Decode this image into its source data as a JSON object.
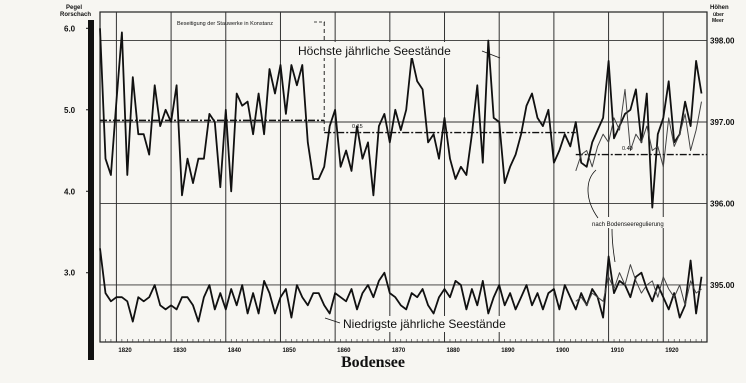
{
  "caption": "Bodensee",
  "chart_data": {
    "type": "line",
    "title": "",
    "annotation_title": "Beseitigung der Stauwerke in Konstanz",
    "left_axis_label_line1": "Pegel",
    "left_axis_label_line2": "Rorschach",
    "right_axis_label_line1": "Höhen",
    "right_axis_label_line2": "über",
    "right_axis_label_line3": "Meer",
    "left_ticks": [
      "6.0",
      "5.0",
      "4.0",
      "3.0"
    ],
    "left_tick_values": [
      6.0,
      5.0,
      4.0,
      3.0
    ],
    "right_ticks": [
      "398.00",
      "397.00",
      "396.00",
      "395.00"
    ],
    "right_tick_values": [
      5.85,
      4.85,
      3.85,
      2.85
    ],
    "x_ticks": [
      "1820",
      "1830",
      "1840",
      "1850",
      "1860",
      "1870",
      "1880",
      "1890",
      "1900",
      "1910",
      "1920"
    ],
    "x_tick_values": [
      1820,
      1830,
      1840,
      1850,
      1860,
      1870,
      1880,
      1890,
      1900,
      1910,
      1920
    ],
    "xlim": [
      1817,
      1928
    ],
    "ylim": [
      2.15,
      6.2
    ],
    "grid": true,
    "annotations": {
      "max_label": "Höchste jährliche Seestände",
      "min_label": "Niedrigste jährliche Seestände",
      "regulation_label": "nach Bodenseeregulierung",
      "mean_diff_1": "0.15",
      "mean_diff_2": "0.40"
    },
    "series": [
      {
        "name": "Höchste jährliche Seestände",
        "x": [
          1817,
          1818,
          1819,
          1820,
          1821,
          1822,
          1823,
          1824,
          1825,
          1826,
          1827,
          1828,
          1829,
          1830,
          1831,
          1832,
          1833,
          1834,
          1835,
          1836,
          1837,
          1838,
          1839,
          1840,
          1841,
          1842,
          1843,
          1844,
          1845,
          1846,
          1847,
          1848,
          1849,
          1850,
          1851,
          1852,
          1853,
          1854,
          1855,
          1856,
          1857,
          1858,
          1859,
          1860,
          1861,
          1862,
          1863,
          1864,
          1865,
          1866,
          1867,
          1868,
          1869,
          1870,
          1871,
          1872,
          1873,
          1874,
          1875,
          1876,
          1877,
          1878,
          1879,
          1880,
          1881,
          1882,
          1883,
          1884,
          1885,
          1886,
          1887,
          1888,
          1889,
          1890,
          1891,
          1892,
          1893,
          1894,
          1895,
          1896,
          1897,
          1898,
          1899,
          1900,
          1901,
          1902,
          1903,
          1904,
          1905,
          1906,
          1907,
          1908,
          1909,
          1910,
          1911,
          1912,
          1913,
          1914,
          1915,
          1916,
          1917,
          1918,
          1919,
          1920,
          1921,
          1922,
          1923,
          1924,
          1925,
          1926,
          1927
        ],
        "y": [
          6.0,
          4.4,
          4.2,
          5.1,
          5.95,
          4.2,
          5.4,
          4.7,
          4.7,
          4.45,
          5.3,
          4.8,
          5.0,
          4.85,
          5.3,
          3.95,
          4.4,
          4.1,
          4.4,
          4.4,
          4.95,
          4.85,
          4.05,
          5.0,
          4.0,
          5.2,
          5.05,
          5.1,
          4.7,
          5.2,
          4.7,
          5.5,
          5.2,
          5.55,
          4.95,
          5.55,
          5.3,
          5.55,
          4.6,
          4.15,
          4.15,
          4.3,
          4.8,
          5.0,
          4.3,
          4.5,
          4.25,
          4.8,
          4.4,
          4.6,
          3.95,
          4.8,
          4.95,
          4.6,
          5.0,
          4.75,
          5.0,
          5.65,
          5.35,
          5.25,
          4.6,
          4.7,
          4.4,
          4.9,
          4.4,
          4.15,
          4.3,
          4.2,
          4.7,
          5.3,
          4.35,
          5.85,
          4.9,
          4.85,
          4.1,
          4.3,
          4.45,
          4.7,
          5.05,
          5.2,
          4.9,
          4.8,
          5.0,
          4.35,
          4.5,
          4.7,
          4.55,
          4.85,
          4.35,
          4.3,
          4.6,
          4.75,
          4.9,
          5.6,
          4.65,
          4.8,
          4.95,
          5.0,
          5.25,
          4.6,
          5.2,
          3.8,
          4.7,
          4.9,
          5.35,
          4.6,
          4.7,
          5.1,
          4.8,
          5.6,
          5.2
        ],
        "color": "#111111",
        "style": "solid"
      },
      {
        "name": "Höchste jährliche Seestände (nach Bodenseeregulierung)",
        "x": [
          1904,
          1905,
          1906,
          1907,
          1908,
          1909,
          1910,
          1911,
          1912,
          1913,
          1914,
          1915,
          1916,
          1917,
          1918,
          1919,
          1920,
          1921,
          1922,
          1923,
          1924,
          1925,
          1926,
          1927
        ],
        "y": [
          4.25,
          4.45,
          4.5,
          4.3,
          4.55,
          4.7,
          4.6,
          4.9,
          4.75,
          5.25,
          4.5,
          4.7,
          4.6,
          4.8,
          4.5,
          4.55,
          4.3,
          4.9,
          4.55,
          4.7,
          4.95,
          4.5,
          4.75,
          5.1
        ],
        "color": "#444444",
        "style": "thin"
      },
      {
        "name": "Niedrigste jährliche Seestände",
        "x": [
          1817,
          1818,
          1819,
          1820,
          1821,
          1822,
          1823,
          1824,
          1825,
          1826,
          1827,
          1828,
          1829,
          1830,
          1831,
          1832,
          1833,
          1834,
          1835,
          1836,
          1837,
          1838,
          1839,
          1840,
          1841,
          1842,
          1843,
          1844,
          1845,
          1846,
          1847,
          1848,
          1849,
          1850,
          1851,
          1852,
          1853,
          1854,
          1855,
          1856,
          1857,
          1858,
          1859,
          1860,
          1861,
          1862,
          1863,
          1864,
          1865,
          1866,
          1867,
          1868,
          1869,
          1870,
          1871,
          1872,
          1873,
          1874,
          1875,
          1876,
          1877,
          1878,
          1879,
          1880,
          1881,
          1882,
          1883,
          1884,
          1885,
          1886,
          1887,
          1888,
          1889,
          1890,
          1891,
          1892,
          1893,
          1894,
          1895,
          1896,
          1897,
          1898,
          1899,
          1900,
          1901,
          1902,
          1903,
          1904,
          1905,
          1906,
          1907,
          1908,
          1909,
          1910,
          1911,
          1912,
          1913,
          1914,
          1915,
          1916,
          1917,
          1918,
          1919,
          1920,
          1921,
          1922,
          1923,
          1924,
          1925,
          1926,
          1927
        ],
        "y": [
          3.3,
          2.75,
          2.65,
          2.7,
          2.7,
          2.65,
          2.4,
          2.7,
          2.65,
          2.7,
          2.85,
          2.6,
          2.55,
          2.6,
          2.55,
          2.7,
          2.7,
          2.6,
          2.4,
          2.7,
          2.85,
          2.55,
          2.75,
          2.55,
          2.8,
          2.6,
          2.85,
          2.5,
          2.75,
          2.5,
          2.9,
          2.75,
          2.5,
          2.7,
          2.8,
          2.45,
          2.85,
          2.7,
          2.6,
          2.75,
          2.75,
          2.6,
          2.5,
          2.75,
          2.7,
          2.65,
          2.8,
          2.55,
          2.75,
          2.85,
          2.7,
          2.9,
          3.0,
          2.75,
          2.7,
          2.6,
          2.55,
          2.75,
          2.7,
          2.8,
          2.6,
          2.5,
          2.7,
          2.8,
          2.7,
          2.9,
          2.85,
          2.55,
          2.8,
          2.6,
          2.9,
          2.5,
          2.7,
          2.85,
          2.6,
          2.75,
          2.55,
          2.7,
          2.85,
          2.6,
          2.75,
          2.55,
          2.75,
          2.8,
          2.55,
          2.85,
          2.7,
          2.55,
          2.75,
          2.6,
          2.8,
          2.7,
          2.45,
          3.2,
          2.75,
          2.9,
          2.85,
          2.7,
          2.95,
          3.0,
          2.8,
          2.65,
          2.85,
          2.7,
          2.55,
          2.75,
          2.45,
          2.6,
          3.15,
          2.5,
          2.95
        ],
        "color": "#111111",
        "style": "solid"
      },
      {
        "name": "Niedrigste jährliche Seestände (nach Bodenseeregulierung)",
        "x": [
          1904,
          1905,
          1906,
          1907,
          1908,
          1909,
          1910,
          1911,
          1912,
          1913,
          1914,
          1915,
          1916,
          1917,
          1918,
          1919,
          1920,
          1921,
          1922,
          1923,
          1924,
          1925,
          1926,
          1927
        ],
        "y": [
          2.65,
          2.7,
          2.6,
          2.75,
          2.7,
          2.65,
          2.95,
          2.8,
          3.0,
          2.85,
          3.1,
          2.9,
          2.75,
          2.85,
          2.9,
          2.7,
          2.95,
          2.8,
          2.7,
          2.85,
          2.6,
          2.9,
          2.75,
          2.8
        ],
        "color": "#444444",
        "style": "thin"
      }
    ],
    "means": [
      {
        "name": "mean-before-1858",
        "x": [
          1817,
          1858
        ],
        "y": 4.87,
        "style": "dash-dot"
      },
      {
        "name": "mean-1858-1904",
        "x": [
          1858,
          1904
        ],
        "y": 4.72,
        "style": "dash-dot"
      },
      {
        "name": "mean-after-regulation",
        "x": [
          1904,
          1928
        ],
        "y": 4.45,
        "style": "dash-dot"
      }
    ]
  }
}
